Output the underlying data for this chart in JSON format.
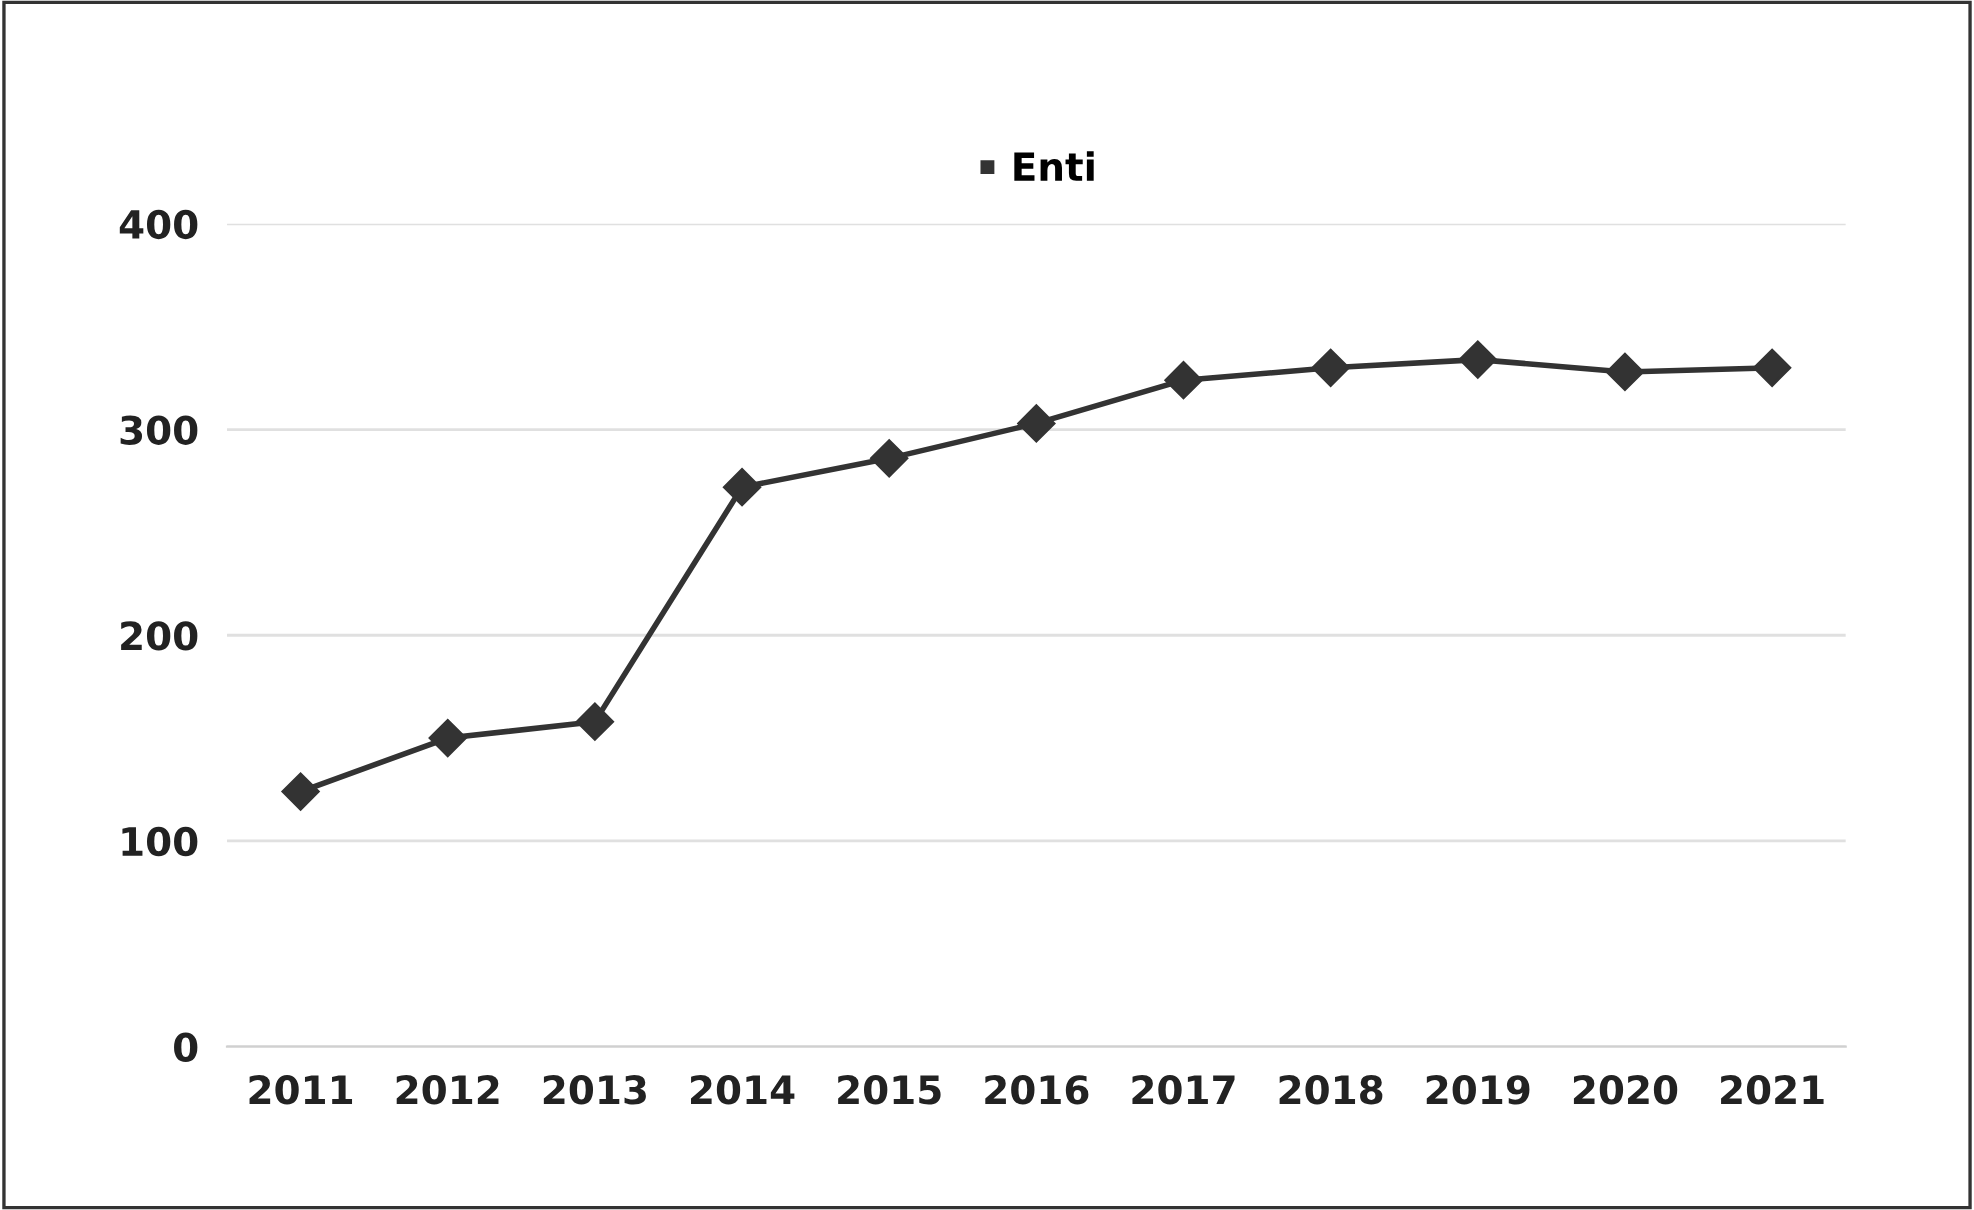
{
  "chart_data": {
    "type": "line",
    "categories": [
      "2011",
      "2012",
      "2013",
      "2014",
      "2015",
      "2016",
      "2017",
      "2018",
      "2019",
      "2020",
      "2021"
    ],
    "series": [
      {
        "name": "Enti",
        "color": "#333333",
        "values": [
          124,
          150,
          158,
          272,
          286,
          303,
          324,
          330,
          334,
          328,
          330
        ]
      }
    ],
    "ylim": [
      0,
      400
    ],
    "yticks": [
      0,
      100,
      200,
      300,
      400
    ],
    "grid": "y",
    "legend": "top",
    "marker": "diamond",
    "line_style": "solid"
  }
}
